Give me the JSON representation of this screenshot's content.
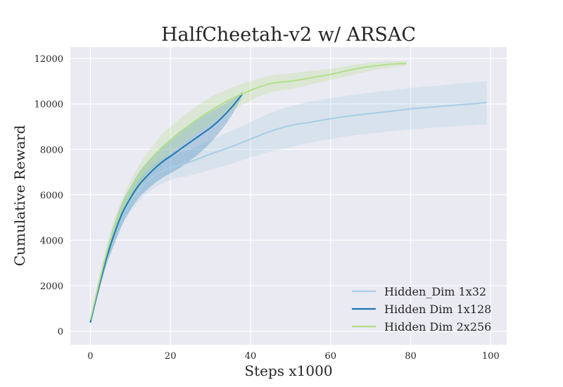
{
  "chart_data": {
    "type": "line",
    "title": "HalfCheetah-v2 w/ ARSAC",
    "xlabel": "Steps x1000",
    "ylabel": "Cumulative Reward",
    "xlim": [
      -5,
      104
    ],
    "ylim": [
      -600,
      12500
    ],
    "xticks": [
      0,
      20,
      40,
      60,
      80,
      100
    ],
    "yticks": [
      0,
      2000,
      4000,
      6000,
      8000,
      10000,
      12000
    ],
    "grid": true,
    "legend_position": "lower-right",
    "series": [
      {
        "name": "Hidden_Dim 1x32",
        "color": "#a6cee3",
        "x": [
          0,
          2,
          4,
          6,
          8,
          10,
          12,
          14,
          16,
          18,
          20,
          22,
          25,
          30,
          35,
          40,
          45,
          50,
          55,
          60,
          65,
          70,
          75,
          80,
          85,
          90,
          95,
          99
        ],
        "y": [
          400,
          1900,
          3200,
          4300,
          5100,
          5700,
          6200,
          6550,
          6850,
          7050,
          7200,
          7300,
          7450,
          7800,
          8100,
          8450,
          8800,
          9050,
          9200,
          9350,
          9480,
          9580,
          9680,
          9780,
          9860,
          9930,
          10000,
          10060
        ],
        "lower": [
          300,
          1700,
          2900,
          3900,
          4700,
          5250,
          5700,
          6050,
          6300,
          6500,
          6650,
          6750,
          6850,
          7100,
          7350,
          7650,
          7900,
          8100,
          8300,
          8450,
          8600,
          8700,
          8800,
          8880,
          8950,
          9000,
          9060,
          9100
        ],
        "upper": [
          500,
          2100,
          3500,
          4700,
          5500,
          6150,
          6700,
          7050,
          7350,
          7600,
          7750,
          7850,
          8000,
          8400,
          8800,
          9200,
          9600,
          9900,
          10100,
          10250,
          10380,
          10500,
          10600,
          10700,
          10780,
          10860,
          10940,
          11000
        ]
      },
      {
        "name": "Hidden Dim 1x128",
        "color": "#1f78b4",
        "x": [
          0,
          2,
          4,
          6,
          8,
          10,
          12,
          14,
          16,
          18,
          20,
          22,
          24,
          26,
          28,
          30,
          32,
          34,
          36,
          38
        ],
        "y": [
          380,
          1850,
          3200,
          4300,
          5200,
          5850,
          6400,
          6800,
          7150,
          7450,
          7700,
          7950,
          8200,
          8450,
          8700,
          8950,
          9250,
          9600,
          10000,
          10450
        ],
        "lower": [
          300,
          1650,
          2900,
          3850,
          4700,
          5350,
          5850,
          6200,
          6500,
          6750,
          6950,
          7150,
          7400,
          7650,
          7950,
          8300,
          8700,
          9150,
          9700,
          10350
        ],
        "upper": [
          460,
          2050,
          3500,
          4750,
          5700,
          6350,
          6950,
          7400,
          7800,
          8150,
          8450,
          8750,
          9000,
          9250,
          9450,
          9650,
          9850,
          10050,
          10250,
          10550
        ]
      },
      {
        "name": "Hidden Dim 2x256",
        "color": "#b2df8a",
        "x": [
          0,
          2,
          4,
          6,
          8,
          10,
          12,
          14,
          16,
          18,
          20,
          22,
          25,
          30,
          35,
          40,
          45,
          50,
          55,
          60,
          65,
          70,
          75,
          79
        ],
        "y": [
          500,
          2000,
          3400,
          4550,
          5450,
          6150,
          6750,
          7250,
          7700,
          8100,
          8400,
          8700,
          9100,
          9700,
          10200,
          10600,
          10900,
          11000,
          11150,
          11300,
          11500,
          11650,
          11750,
          11780
        ],
        "lower": [
          400,
          1800,
          3100,
          4200,
          5050,
          5700,
          6250,
          6700,
          7150,
          7500,
          7800,
          8100,
          8500,
          9100,
          9650,
          10150,
          10500,
          10650,
          10850,
          11050,
          11250,
          11450,
          11600,
          11700
        ],
        "upper": [
          600,
          2200,
          3700,
          4900,
          5850,
          6600,
          7250,
          7800,
          8250,
          8700,
          9000,
          9300,
          9700,
          10300,
          10700,
          11000,
          11250,
          11350,
          11450,
          11550,
          11700,
          11820,
          11880,
          11880
        ]
      }
    ]
  }
}
